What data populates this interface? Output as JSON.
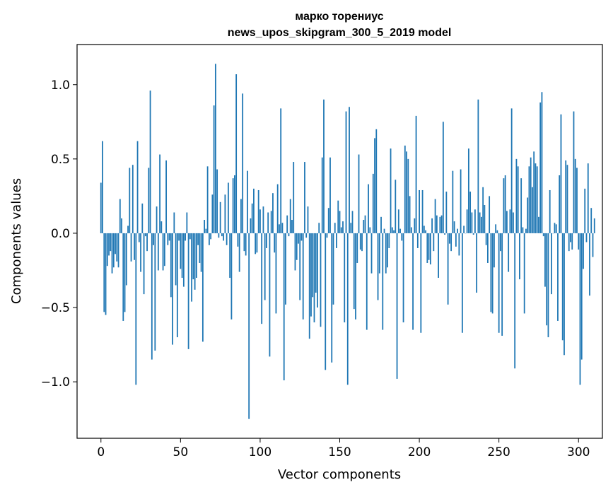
{
  "chart_data": {
    "type": "bar",
    "title": "марко торениус",
    "subtitle": "news_upos_skipgram_300_5_2019 model",
    "xlabel": "Vector components",
    "ylabel": "Components values",
    "xlim": [
      -15,
      315
    ],
    "ylim": [
      -1.38,
      1.27
    ],
    "xticks": [
      0,
      50,
      100,
      150,
      200,
      250,
      300
    ],
    "xtick_labels": [
      "0",
      "50",
      "100",
      "150",
      "200",
      "250",
      "300"
    ],
    "yticks": [
      -1.0,
      -0.5,
      0.0,
      0.5,
      1.0
    ],
    "ytick_labels": [
      "−1.0",
      "−0.5",
      "0.0",
      "0.5",
      "1.0"
    ],
    "grid": false,
    "legend": "none",
    "bar_color": "#1f77b4",
    "series": [
      {
        "values": [
          0.34,
          0.62,
          -0.53,
          -0.55,
          -0.22,
          -0.15,
          -0.12,
          -0.27,
          -0.23,
          -0.14,
          -0.19,
          -0.23,
          0.23,
          0.1,
          -0.59,
          -0.53,
          -0.35,
          0.05,
          0.44,
          -0.19,
          0.46,
          -0.18,
          -1.02,
          0.62,
          -0.06,
          -0.26,
          0.2,
          -0.41,
          -0.02,
          -0.12,
          0.44,
          0.96,
          -0.85,
          -0.08,
          -0.79,
          0.18,
          -0.25,
          0.53,
          0.08,
          -0.25,
          -0.22,
          0.49,
          -0.08,
          -0.05,
          -0.43,
          -0.75,
          0.14,
          -0.35,
          -0.7,
          -0.05,
          -0.24,
          -0.3,
          -0.36,
          -0.05,
          0.14,
          -0.78,
          -0.04,
          -0.46,
          -0.31,
          -0.38,
          -0.3,
          -0.08,
          -0.2,
          -0.26,
          -0.73,
          0.09,
          0.03,
          0.45,
          -0.08,
          -0.04,
          0.26,
          0.86,
          1.14,
          0.43,
          -0.03,
          0.21,
          -0.02,
          -0.05,
          0.26,
          -0.08,
          0.34,
          -0.3,
          -0.58,
          0.37,
          0.39,
          1.07,
          -0.09,
          -0.26,
          0.23,
          0.94,
          -0.12,
          -0.15,
          0.42,
          -1.25,
          0.1,
          0.2,
          0.3,
          -0.14,
          -0.13,
          0.29,
          0.16,
          -0.61,
          0.18,
          -0.45,
          -0.1,
          0.14,
          -0.83,
          0.15,
          0.27,
          -0.13,
          -0.54,
          0.33,
          0.06,
          0.84,
          0.07,
          -0.99,
          -0.48,
          0.12,
          -0.02,
          0.23,
          0.09,
          0.48,
          -0.25,
          -0.18,
          -0.07,
          -0.45,
          -0.05,
          -0.58,
          0.48,
          -0.03,
          0.18,
          -0.71,
          -0.56,
          -0.43,
          -0.6,
          -0.4,
          -0.5,
          0.07,
          -0.63,
          0.51,
          0.9,
          -0.92,
          -0.03,
          0.17,
          0.51,
          -0.87,
          -0.48,
          0.07,
          -0.1,
          0.22,
          0.15,
          0.04,
          0.08,
          -0.6,
          0.82,
          -1.02,
          0.85,
          0.07,
          0.15,
          -0.51,
          -0.58,
          -0.2,
          0.53,
          -0.11,
          -0.12,
          0.09,
          0.12,
          -0.65,
          0.33,
          0.04,
          -0.27,
          0.4,
          0.64,
          0.7,
          -0.45,
          -0.27,
          0.11,
          -0.65,
          0.03,
          -0.27,
          -0.23,
          -0.1,
          0.57,
          0.04,
          0.02,
          0.36,
          -0.98,
          0.16,
          0.03,
          -0.05,
          -0.6,
          0.59,
          0.55,
          0.5,
          0.25,
          0.04,
          -0.65,
          0.1,
          0.79,
          -0.1,
          0.29,
          -0.67,
          0.29,
          0.05,
          0.02,
          -0.2,
          -0.18,
          -0.21,
          0.1,
          -0.12,
          0.23,
          0.12,
          -0.3,
          0.11,
          0.12,
          0.75,
          -0.01,
          0.28,
          -0.48,
          -0.07,
          -0.12,
          0.42,
          0.08,
          -0.09,
          0.03,
          -0.15,
          0.43,
          -0.67,
          0.05,
          0.0,
          0.16,
          0.57,
          0.28,
          0.14,
          -0.01,
          0.16,
          -0.4,
          0.9,
          0.14,
          0.11,
          0.31,
          0.19,
          -0.08,
          -0.2,
          0.25,
          -0.53,
          -0.54,
          -0.23,
          0.06,
          0.02,
          -0.67,
          -0.12,
          -0.69,
          0.37,
          0.39,
          0.15,
          -0.26,
          0.16,
          0.84,
          0.14,
          -0.91,
          0.5,
          0.45,
          -0.31,
          0.37,
          0.04,
          -0.54,
          0.03,
          0.24,
          0.45,
          0.51,
          0.31,
          0.55,
          0.47,
          0.45,
          0.11,
          0.88,
          0.95,
          -0.02,
          -0.36,
          -0.62,
          -0.7,
          0.29,
          -0.41,
          0.0,
          0.07,
          0.06,
          -0.59,
          0.39,
          0.8,
          -0.72,
          -0.82,
          0.49,
          0.46,
          -0.12,
          -0.06,
          -0.11,
          0.82,
          0.5,
          0.44,
          -0.11,
          -1.02,
          -0.85,
          -0.24,
          0.3,
          -0.06,
          0.47,
          -0.42,
          0.17,
          -0.16,
          0.1
        ]
      }
    ]
  }
}
